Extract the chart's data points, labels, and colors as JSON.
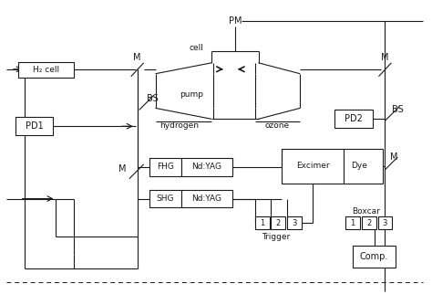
{
  "bg_color": "#ffffff",
  "line_color": "#1a1a1a",
  "box_color": "#ffffff",
  "figsize": [
    4.74,
    3.34
  ],
  "dpi": 100,
  "labels": {
    "PM": "PM",
    "cell": "cell",
    "H2_cell": "H₂ cell",
    "PD1": "PD1",
    "PD2": "PD2",
    "BS_left": "BS",
    "BS_right": "BS",
    "hydrogen": "hydrogen",
    "pump": "pump",
    "ozone": "ozone",
    "FHG": "FHG",
    "NdYAG_top": "Nd:YAG",
    "SHG": "SHG",
    "NdYAG_bot": "Nd:YAG",
    "Excimer": "Excimer",
    "Dye": "Dye",
    "Boxcar": "Boxcar",
    "Trigger": "Trigger",
    "Comp": "Comp.",
    "M_topleft": "M",
    "M_topright": "M",
    "M_midleft": "M",
    "M_midright": "M",
    "t1": "1",
    "t2": "2",
    "t3": "3",
    "b1": "1",
    "b2": "2",
    "b3": "3"
  }
}
